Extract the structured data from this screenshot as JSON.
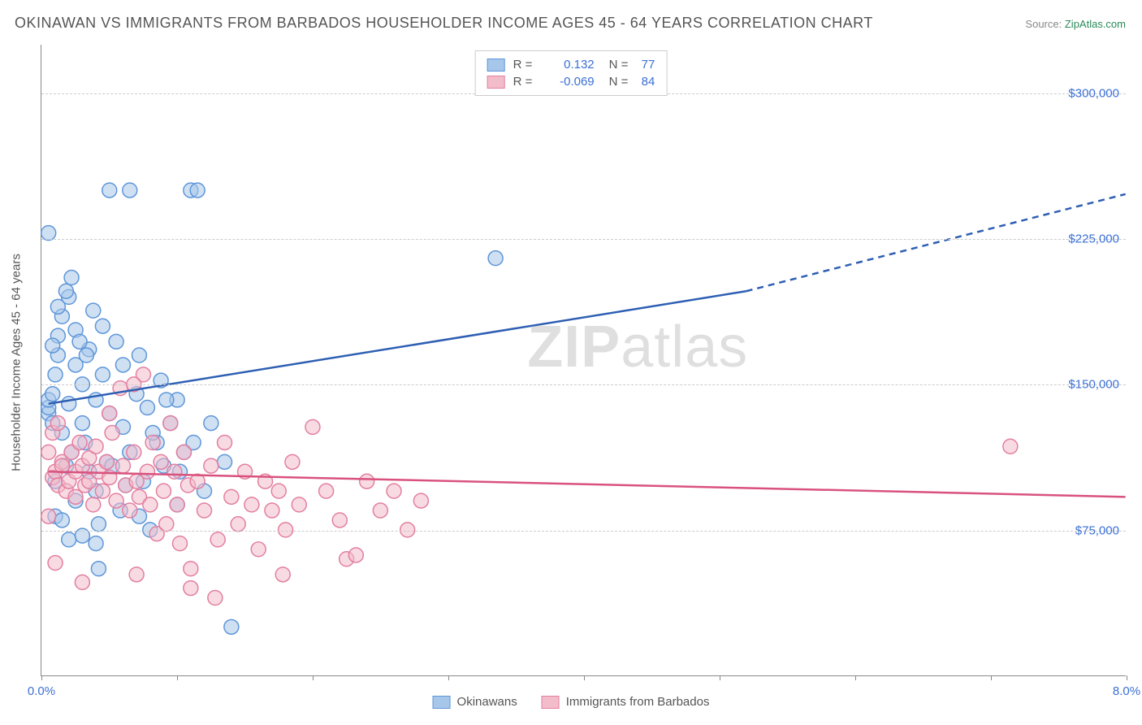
{
  "title": "OKINAWAN VS IMMIGRANTS FROM BARBADOS HOUSEHOLDER INCOME AGES 45 - 64 YEARS CORRELATION CHART",
  "source_label": "Source:",
  "source_name": "ZipAtlas.com",
  "ylabel": "Householder Income Ages 45 - 64 years",
  "watermark_a": "ZIP",
  "watermark_b": "atlas",
  "chart": {
    "type": "scatter",
    "xlim": [
      0,
      8
    ],
    "ylim": [
      0,
      325000
    ],
    "xticks": [
      0,
      1,
      2,
      3,
      4,
      5,
      6,
      7,
      8
    ],
    "xtick_labels": {
      "0": "0.0%",
      "8": "8.0%"
    },
    "yticks": [
      75000,
      150000,
      225000,
      300000
    ],
    "ytick_labels": [
      "$75,000",
      "$150,000",
      "$225,000",
      "$300,000"
    ],
    "grid_color": "#cccccc",
    "axis_color": "#888888",
    "background_color": "#ffffff",
    "marker_radius": 9,
    "marker_stroke_width": 1.5,
    "trend_line_width": 2.5,
    "series": [
      {
        "name": "Okinawans",
        "fill_color": "#a7c7ea",
        "stroke_color": "#5e96d9",
        "line_color": "#2e5fb3",
        "r_value": "0.132",
        "n_value": "77",
        "trend": {
          "x1": 0.05,
          "y1": 140000,
          "x2": 5.2,
          "y2": 198000,
          "x2_dash": 8.0,
          "y2_dash": 248000
        },
        "points": [
          [
            0.05,
            135000
          ],
          [
            0.05,
            138000
          ],
          [
            0.05,
            142000
          ],
          [
            0.08,
            130000
          ],
          [
            0.08,
            145000
          ],
          [
            0.1,
            100000
          ],
          [
            0.1,
            155000
          ],
          [
            0.12,
            165000
          ],
          [
            0.12,
            175000
          ],
          [
            0.15,
            125000
          ],
          [
            0.15,
            185000
          ],
          [
            0.18,
            108000
          ],
          [
            0.2,
            140000
          ],
          [
            0.2,
            195000
          ],
          [
            0.22,
            115000
          ],
          [
            0.25,
            160000
          ],
          [
            0.25,
            178000
          ],
          [
            0.05,
            228000
          ],
          [
            0.3,
            150000
          ],
          [
            0.3,
            130000
          ],
          [
            0.32,
            120000
          ],
          [
            0.35,
            105000
          ],
          [
            0.35,
            168000
          ],
          [
            0.38,
            188000
          ],
          [
            0.4,
            142000
          ],
          [
            0.4,
            95000
          ],
          [
            0.42,
            78000
          ],
          [
            0.45,
            155000
          ],
          [
            0.48,
            110000
          ],
          [
            0.5,
            135000
          ],
          [
            0.5,
            250000
          ],
          [
            0.55,
            172000
          ],
          [
            0.58,
            85000
          ],
          [
            0.6,
            160000
          ],
          [
            0.6,
            128000
          ],
          [
            0.65,
            250000
          ],
          [
            0.65,
            115000
          ],
          [
            0.7,
            145000
          ],
          [
            0.72,
            165000
          ],
          [
            0.75,
            100000
          ],
          [
            0.78,
            138000
          ],
          [
            0.8,
            75000
          ],
          [
            0.1,
            82000
          ],
          [
            0.85,
            120000
          ],
          [
            0.88,
            152000
          ],
          [
            0.9,
            108000
          ],
          [
            0.95,
            130000
          ],
          [
            1.0,
            142000
          ],
          [
            1.0,
            88000
          ],
          [
            1.05,
            115000
          ],
          [
            1.1,
            250000
          ],
          [
            1.15,
            250000
          ],
          [
            1.2,
            95000
          ],
          [
            1.25,
            130000
          ],
          [
            0.42,
            55000
          ],
          [
            1.35,
            110000
          ],
          [
            1.4,
            25000
          ],
          [
            0.15,
            80000
          ],
          [
            0.2,
            70000
          ],
          [
            0.25,
            90000
          ],
          [
            0.3,
            72000
          ],
          [
            3.35,
            215000
          ],
          [
            0.4,
            68000
          ],
          [
            0.08,
            170000
          ],
          [
            0.12,
            190000
          ],
          [
            0.18,
            198000
          ],
          [
            0.22,
            205000
          ],
          [
            0.28,
            172000
          ],
          [
            0.33,
            165000
          ],
          [
            0.45,
            180000
          ],
          [
            0.52,
            108000
          ],
          [
            0.62,
            98000
          ],
          [
            0.72,
            82000
          ],
          [
            0.82,
            125000
          ],
          [
            0.92,
            142000
          ],
          [
            1.02,
            105000
          ],
          [
            1.12,
            120000
          ]
        ]
      },
      {
        "name": "Immigrants from Barbados",
        "fill_color": "#f3bccb",
        "stroke_color": "#e37fa0",
        "line_color": "#d9527e",
        "r_value": "-0.069",
        "n_value": "84",
        "trend": {
          "x1": 0.05,
          "y1": 105000,
          "x2": 8.0,
          "y2": 92000
        },
        "points": [
          [
            0.08,
            102000
          ],
          [
            0.1,
            105000
          ],
          [
            0.12,
            98000
          ],
          [
            0.15,
            110000
          ],
          [
            0.15,
            108000
          ],
          [
            0.18,
            95000
          ],
          [
            0.2,
            100000
          ],
          [
            0.22,
            115000
          ],
          [
            0.25,
            105000
          ],
          [
            0.25,
            92000
          ],
          [
            0.28,
            120000
          ],
          [
            0.3,
            108000
          ],
          [
            0.32,
            98000
          ],
          [
            0.35,
            112000
          ],
          [
            0.35,
            100000
          ],
          [
            0.38,
            88000
          ],
          [
            0.4,
            118000
          ],
          [
            0.42,
            105000
          ],
          [
            0.45,
            95000
          ],
          [
            0.48,
            110000
          ],
          [
            0.5,
            102000
          ],
          [
            0.52,
            125000
          ],
          [
            0.55,
            90000
          ],
          [
            0.58,
            148000
          ],
          [
            0.6,
            108000
          ],
          [
            0.62,
            98000
          ],
          [
            0.65,
            85000
          ],
          [
            0.68,
            115000
          ],
          [
            0.7,
            100000
          ],
          [
            0.72,
            92000
          ],
          [
            0.75,
            155000
          ],
          [
            0.78,
            105000
          ],
          [
            0.8,
            88000
          ],
          [
            0.82,
            120000
          ],
          [
            0.85,
            73000
          ],
          [
            0.88,
            110000
          ],
          [
            0.9,
            95000
          ],
          [
            0.92,
            78000
          ],
          [
            0.95,
            130000
          ],
          [
            0.98,
            105000
          ],
          [
            1.0,
            88000
          ],
          [
            1.02,
            68000
          ],
          [
            1.05,
            115000
          ],
          [
            1.08,
            98000
          ],
          [
            1.1,
            55000
          ],
          [
            1.15,
            100000
          ],
          [
            1.2,
            85000
          ],
          [
            1.25,
            108000
          ],
          [
            1.3,
            70000
          ],
          [
            1.35,
            120000
          ],
          [
            1.4,
            92000
          ],
          [
            1.45,
            78000
          ],
          [
            1.5,
            105000
          ],
          [
            1.55,
            88000
          ],
          [
            1.6,
            65000
          ],
          [
            1.65,
            100000
          ],
          [
            1.7,
            85000
          ],
          [
            1.75,
            95000
          ],
          [
            1.8,
            75000
          ],
          [
            1.85,
            110000
          ],
          [
            1.9,
            88000
          ],
          [
            1.78,
            52000
          ],
          [
            2.0,
            128000
          ],
          [
            2.1,
            95000
          ],
          [
            2.2,
            80000
          ],
          [
            2.25,
            60000
          ],
          [
            2.32,
            62000
          ],
          [
            2.4,
            100000
          ],
          [
            2.5,
            85000
          ],
          [
            2.6,
            95000
          ],
          [
            2.7,
            75000
          ],
          [
            2.8,
            90000
          ],
          [
            0.1,
            58000
          ],
          [
            0.3,
            48000
          ],
          [
            0.7,
            52000
          ],
          [
            1.1,
            45000
          ],
          [
            1.28,
            40000
          ],
          [
            0.05,
            82000
          ],
          [
            0.05,
            115000
          ],
          [
            0.08,
            125000
          ],
          [
            0.12,
            130000
          ],
          [
            0.5,
            135000
          ],
          [
            0.68,
            150000
          ],
          [
            7.15,
            118000
          ]
        ]
      }
    ]
  },
  "legend_top": {
    "r_label": "R =",
    "n_label": "N ="
  },
  "legend_bottom": [
    {
      "label": "Okinawans",
      "series_idx": 0
    },
    {
      "label": "Immigrants from Barbados",
      "series_idx": 1
    }
  ]
}
